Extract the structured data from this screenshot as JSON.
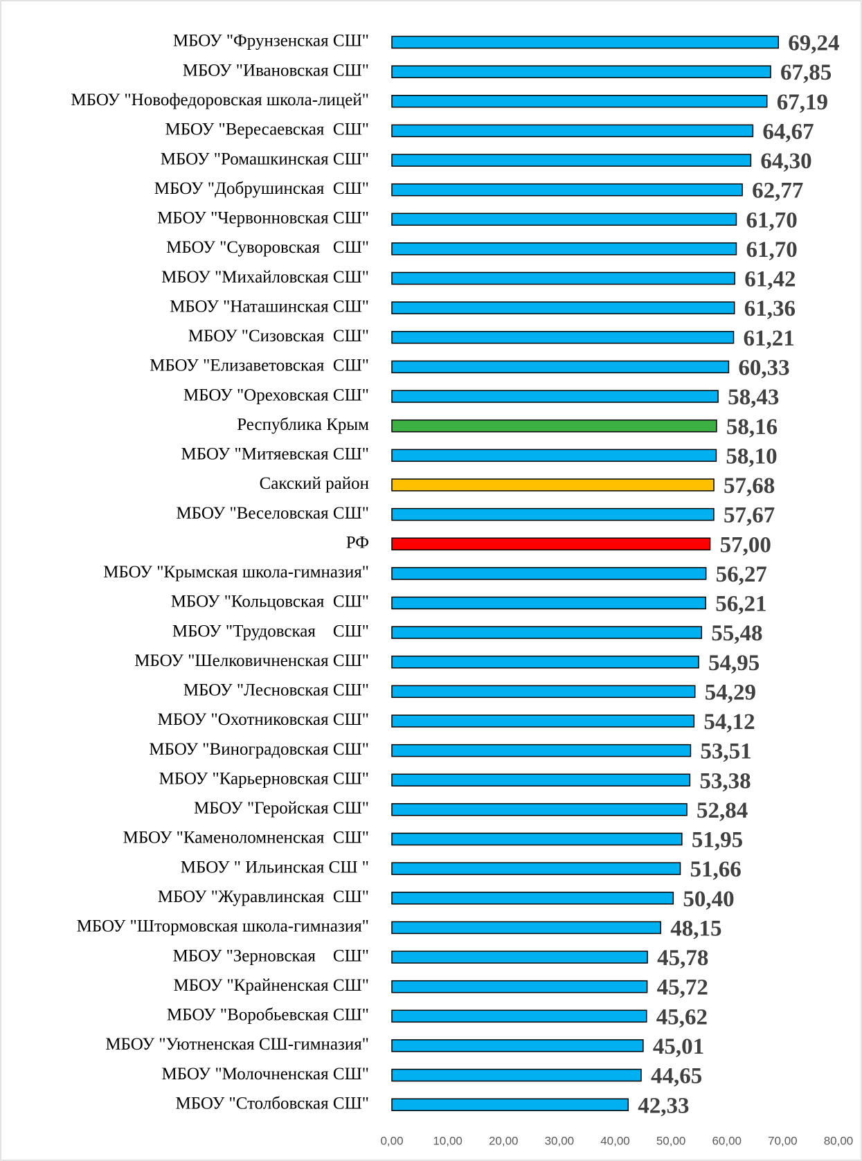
{
  "chart_data": {
    "type": "barh",
    "categories": [
      "МБОУ \"Фрунзенская СШ\"",
      "МБОУ \"Ивановская СШ\"",
      "МБОУ \"Новофедоровская школа-лицей\"",
      "МБОУ \"Вересаевская  СШ\"",
      "МБОУ \"Ромашкинская СШ\"",
      "МБОУ \"Добрушинская  СШ\"",
      "МБОУ \"Червонновская СШ\"",
      "МБОУ \"Суворовская   СШ\"",
      "МБОУ \"Михайловская СШ\"",
      "МБОУ \"Наташинская СШ\"",
      "МБОУ \"Сизовская  СШ\"",
      "МБОУ \"Елизаветовская  СШ\"",
      "МБОУ \"Ореховская СШ\"",
      "Республика Крым",
      "МБОУ \"Митяевская СШ\"",
      "Сакский район",
      "МБОУ \"Веселовская СШ\"",
      "РФ",
      "МБОУ \"Крымская школа-гимназия\"",
      "МБОУ \"Кольцовская  СШ\"",
      "МБОУ \"Трудовская    СШ\"",
      "МБОУ \"Шелковичненская СШ\"",
      "МБОУ \"Лесновская СШ\"",
      "МБОУ \"Охотниковская СШ\"",
      "МБОУ \"Виноградовская СШ\"",
      "МБОУ \"Карьерновская СШ\"",
      "МБОУ \"Геройская СШ\"",
      "МБОУ \"Каменоломненская  СШ\"",
      "МБОУ \" Ильинская СШ \"",
      "МБОУ \"Журавлинская  СШ\"",
      "МБОУ \"Штормовская школа-гимназия\"",
      "МБОУ \"Зерновская    СШ\"",
      "МБОУ \"Крайненская СШ\"",
      "МБОУ \"Воробьевская СШ\"",
      "МБОУ \"Уютненская СШ-гимназия\"",
      "МБОУ \"Молочненская СШ\"",
      "МБОУ \"Столбовская СШ\""
    ],
    "values": [
      69.24,
      67.85,
      67.19,
      64.67,
      64.3,
      62.77,
      61.7,
      61.7,
      61.42,
      61.36,
      61.21,
      60.33,
      58.43,
      58.16,
      58.1,
      57.68,
      57.67,
      57.0,
      56.27,
      56.21,
      55.48,
      54.95,
      54.29,
      54.12,
      53.51,
      53.38,
      52.84,
      51.95,
      51.66,
      50.4,
      48.15,
      45.78,
      45.72,
      45.62,
      45.01,
      44.65,
      42.33
    ],
    "value_labels": [
      "69,24",
      "67,85",
      "67,19",
      "64,67",
      "64,30",
      "62,77",
      "61,70",
      "61,70",
      "61,42",
      "61,36",
      "61,21",
      "60,33",
      "58,43",
      "58,16",
      "58,10",
      "57,68",
      "57,67",
      "57,00",
      "56,27",
      "56,21",
      "55,48",
      "54,95",
      "54,29",
      "54,12",
      "53,51",
      "53,38",
      "52,84",
      "51,95",
      "51,66",
      "50,40",
      "48,15",
      "45,78",
      "45,72",
      "45,62",
      "45,01",
      "44,65",
      "42,33"
    ],
    "colors": [
      "#00b0f0",
      "#00b0f0",
      "#00b0f0",
      "#00b0f0",
      "#00b0f0",
      "#00b0f0",
      "#00b0f0",
      "#00b0f0",
      "#00b0f0",
      "#00b0f0",
      "#00b0f0",
      "#00b0f0",
      "#00b0f0",
      "#3cb043",
      "#00b0f0",
      "#ffc000",
      "#00b0f0",
      "#ff0000",
      "#00b0f0",
      "#00b0f0",
      "#00b0f0",
      "#00b0f0",
      "#00b0f0",
      "#00b0f0",
      "#00b0f0",
      "#00b0f0",
      "#00b0f0",
      "#00b0f0",
      "#00b0f0",
      "#00b0f0",
      "#00b0f0",
      "#00b0f0",
      "#00b0f0",
      "#00b0f0",
      "#00b0f0",
      "#00b0f0",
      "#00b0f0"
    ],
    "xlim": [
      0,
      80
    ],
    "xticks": [
      {
        "value": 0,
        "label": "0,00"
      },
      {
        "value": 10,
        "label": "10,00"
      },
      {
        "value": 20,
        "label": "20,00"
      },
      {
        "value": 30,
        "label": "30,00"
      },
      {
        "value": 40,
        "label": "40,00"
      },
      {
        "value": 50,
        "label": "50,00"
      },
      {
        "value": 60,
        "label": "60,00"
      },
      {
        "value": 70,
        "label": "70,00"
      },
      {
        "value": 80,
        "label": "80,00"
      }
    ],
    "grid": false
  }
}
